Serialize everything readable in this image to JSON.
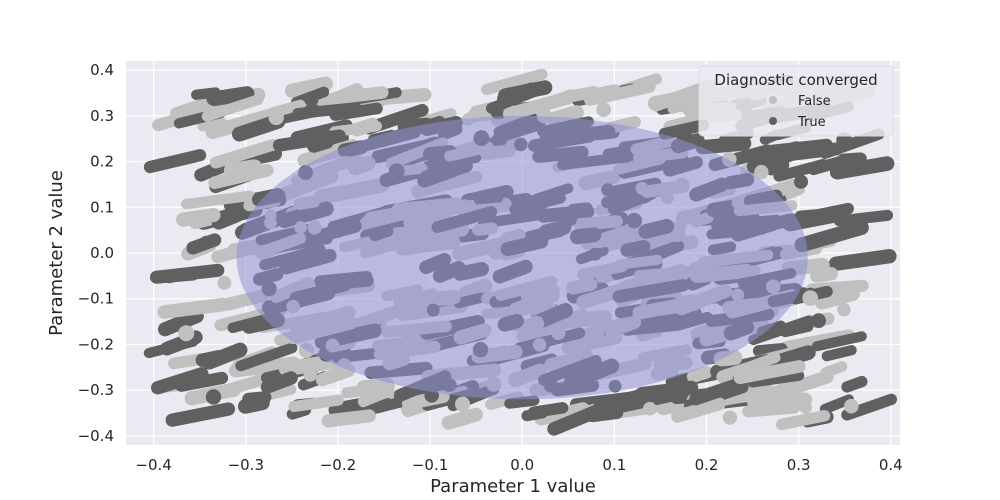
{
  "chart_data": {
    "type": "scatter",
    "title": "",
    "xlabel": "Parameter 1 value",
    "ylabel": "Parameter 2 value",
    "xlim": [
      -0.43,
      0.41
    ],
    "ylim": [
      -0.42,
      0.42
    ],
    "xticks": [
      -0.4,
      -0.3,
      -0.2,
      -0.1,
      0.0,
      0.1,
      0.2,
      0.3,
      0.4
    ],
    "yticks": [
      -0.4,
      -0.3,
      -0.2,
      -0.1,
      0.0,
      0.1,
      0.2,
      0.3,
      0.4
    ],
    "xtick_labels": [
      "−0.4",
      "−0.3",
      "−0.2",
      "−0.1",
      "0.0",
      "0.1",
      "0.2",
      "0.3",
      "0.4"
    ],
    "ytick_labels": [
      "−0.4",
      "−0.3",
      "−0.2",
      "−0.1",
      "0.0",
      "0.1",
      "0.2",
      "0.3",
      "0.4"
    ],
    "grid": true,
    "background_color": "#eaeaf2",
    "legend": {
      "title": "Diagnostic converged",
      "placement": "top-right",
      "entries": [
        {
          "label": "False",
          "color": "#c0c0c0"
        },
        {
          "label": "True",
          "color": "#606060"
        }
      ]
    },
    "series": [
      {
        "name": "False",
        "color": "#c0c0c0"
      },
      {
        "name": "True",
        "color": "#606060"
      }
    ],
    "region": {
      "shape": "ellipse",
      "center": [
        0.0,
        -0.01
      ],
      "radii": [
        0.31,
        0.31
      ],
      "color": "#8f8fd6",
      "opacity": 0.55
    }
  }
}
